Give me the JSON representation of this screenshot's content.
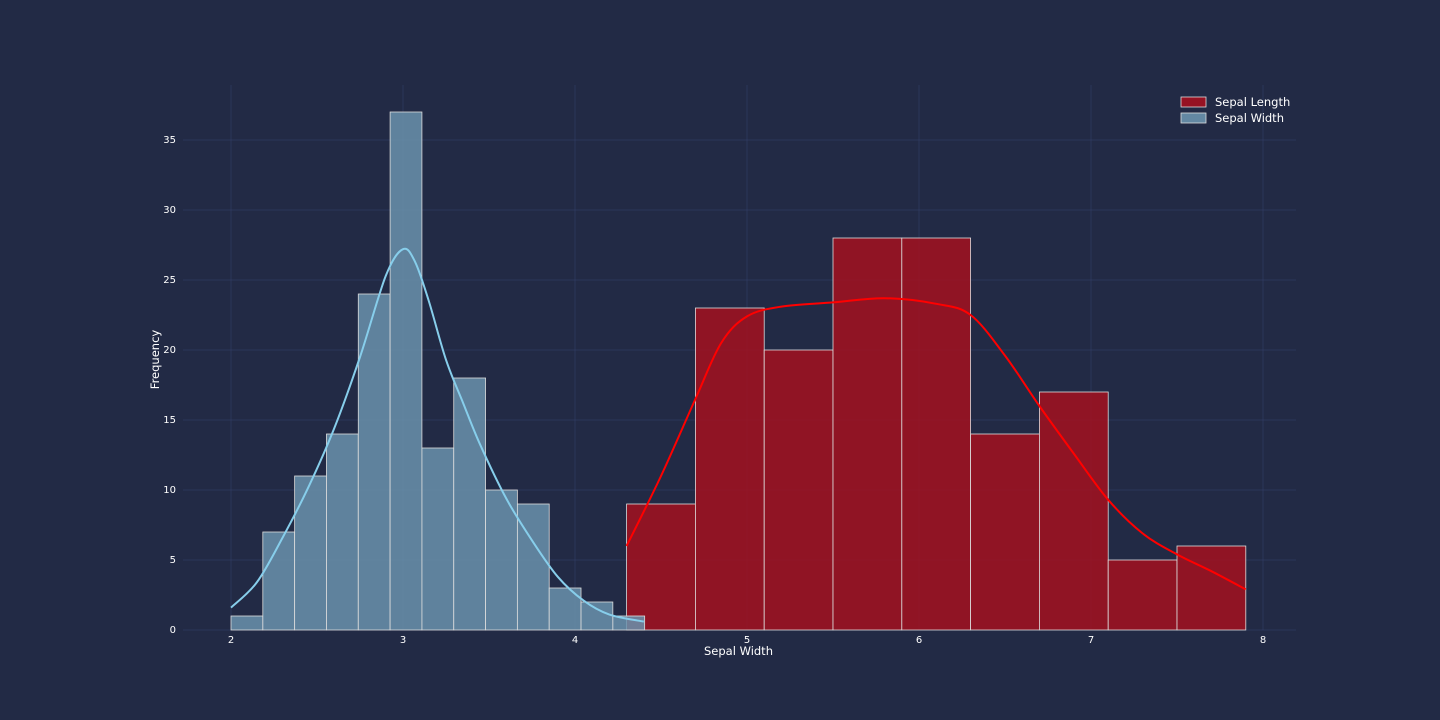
{
  "chart_data": {
    "type": "bar",
    "subtype": "histogram-with-kde",
    "title": "",
    "xlabel": "Sepal Width",
    "ylabel": "Frequency",
    "xlim": [
      1.72,
      8.2
    ],
    "ylim": [
      0,
      39
    ],
    "xticks": [
      2,
      3,
      4,
      5,
      6,
      7,
      8
    ],
    "yticks": [
      0,
      5,
      10,
      15,
      20,
      25,
      30,
      35
    ],
    "grid": true,
    "legend_position": "top-right",
    "series": [
      {
        "name": "Sepal Length",
        "color": "#a3101f",
        "line_color": "#ff0000",
        "bins": [
          {
            "start": 4.3,
            "end": 4.7,
            "count": 9
          },
          {
            "start": 4.7,
            "end": 5.1,
            "count": 23
          },
          {
            "start": 5.1,
            "end": 5.5,
            "count": 20
          },
          {
            "start": 5.5,
            "end": 5.9,
            "count": 28
          },
          {
            "start": 5.9,
            "end": 6.3,
            "count": 28
          },
          {
            "start": 6.3,
            "end": 6.7,
            "count": 14
          },
          {
            "start": 6.7,
            "end": 7.1,
            "count": 17
          },
          {
            "start": 7.1,
            "end": 7.5,
            "count": 5
          },
          {
            "start": 7.5,
            "end": 7.9,
            "count": 6
          }
        ],
        "kde": [
          [
            4.3,
            6.0
          ],
          [
            4.5,
            11.0
          ],
          [
            4.7,
            16.5
          ],
          [
            4.85,
            20.5
          ],
          [
            5.0,
            22.4
          ],
          [
            5.2,
            23.1
          ],
          [
            5.5,
            23.4
          ],
          [
            5.8,
            23.7
          ],
          [
            6.1,
            23.3
          ],
          [
            6.3,
            22.5
          ],
          [
            6.5,
            19.6
          ],
          [
            6.7,
            16.0
          ],
          [
            6.9,
            12.6
          ],
          [
            7.1,
            9.3
          ],
          [
            7.3,
            6.9
          ],
          [
            7.5,
            5.4
          ],
          [
            7.7,
            4.2
          ],
          [
            7.9,
            2.9
          ]
        ]
      },
      {
        "name": "Sepal Width",
        "color": "#6a92ad",
        "line_color": "#87ceeb",
        "bins": [
          {
            "start": 2.0,
            "end": 2.185,
            "count": 1
          },
          {
            "start": 2.185,
            "end": 2.37,
            "count": 7
          },
          {
            "start": 2.37,
            "end": 2.555,
            "count": 11
          },
          {
            "start": 2.555,
            "end": 2.74,
            "count": 14
          },
          {
            "start": 2.74,
            "end": 2.925,
            "count": 24
          },
          {
            "start": 2.925,
            "end": 3.11,
            "count": 37
          },
          {
            "start": 3.11,
            "end": 3.295,
            "count": 13
          },
          {
            "start": 3.295,
            "end": 3.48,
            "count": 18
          },
          {
            "start": 3.48,
            "end": 3.665,
            "count": 10
          },
          {
            "start": 3.665,
            "end": 3.85,
            "count": 9
          },
          {
            "start": 3.85,
            "end": 4.035,
            "count": 3
          },
          {
            "start": 4.035,
            "end": 4.22,
            "count": 2
          },
          {
            "start": 4.22,
            "end": 4.405,
            "count": 1
          }
        ],
        "kde": [
          [
            2.0,
            1.6
          ],
          [
            2.15,
            3.4
          ],
          [
            2.3,
            6.6
          ],
          [
            2.45,
            10.2
          ],
          [
            2.6,
            14.4
          ],
          [
            2.75,
            19.5
          ],
          [
            2.9,
            25.3
          ],
          [
            3.0,
            27.2
          ],
          [
            3.07,
            26.3
          ],
          [
            3.15,
            23.5
          ],
          [
            3.25,
            19.3
          ],
          [
            3.35,
            16.2
          ],
          [
            3.45,
            13.2
          ],
          [
            3.6,
            9.4
          ],
          [
            3.75,
            6.4
          ],
          [
            3.9,
            3.8
          ],
          [
            4.05,
            2.1
          ],
          [
            4.2,
            1.1
          ],
          [
            4.4,
            0.6
          ]
        ]
      }
    ]
  }
}
